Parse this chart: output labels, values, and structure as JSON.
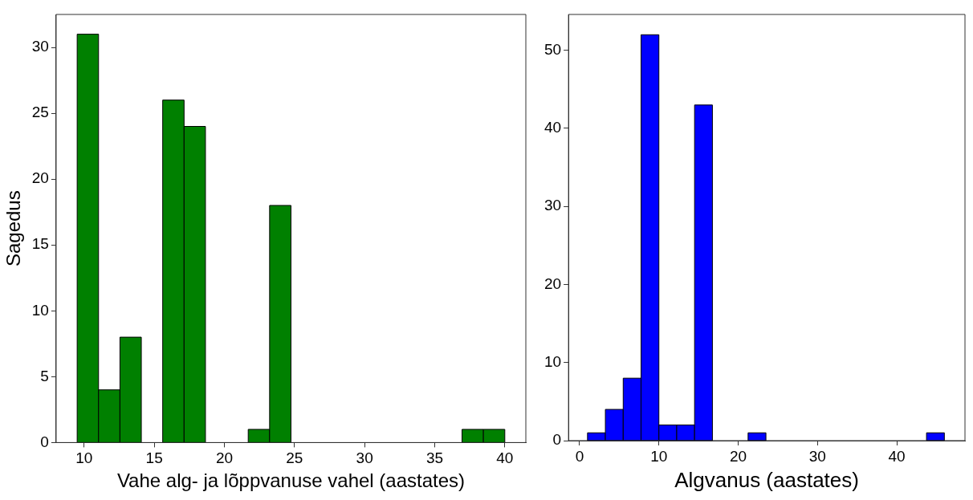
{
  "chart_data": [
    {
      "type": "histogram",
      "xlabel": "Vahe alg- ja lõppvanuse vahel (aastates)",
      "ylabel": "Sagedus",
      "color": "#008000",
      "bins": [
        9.5,
        11.025,
        12.55,
        14.075,
        15.6,
        17.125,
        18.65,
        20.175,
        21.7,
        23.225,
        24.75,
        26.275,
        27.8,
        29.325,
        30.85,
        32.375,
        33.9,
        35.425,
        36.95,
        38.475,
        40
      ],
      "values": [
        31,
        4,
        8,
        0,
        26,
        24,
        0,
        0,
        1,
        18,
        0,
        0,
        0,
        0,
        0,
        0,
        0,
        0,
        1,
        1
      ],
      "xlim": [
        8,
        41.5
      ],
      "xticks": [
        10,
        15,
        20,
        25,
        30,
        35,
        40
      ],
      "ylim": [
        0,
        32.5
      ],
      "yticks": [
        0,
        5,
        10,
        15,
        20,
        25,
        30
      ],
      "grid": false
    },
    {
      "type": "histogram",
      "xlabel": "Algvanus (aastates)",
      "color": "#0000ff",
      "bins": [
        1,
        3.25,
        5.5,
        7.75,
        10,
        12.25,
        14.5,
        16.75,
        19,
        21.25,
        23.5,
        25.75,
        28,
        30.25,
        32.5,
        34.75,
        37,
        39.25,
        41.5,
        43.75,
        46
      ],
      "values": [
        1,
        4,
        8,
        52,
        2,
        2,
        43,
        0,
        0,
        1,
        0,
        0,
        0,
        0,
        0,
        0,
        0,
        0,
        0,
        1
      ],
      "xlim": [
        -1.4,
        48.6
      ],
      "xticks": [
        0,
        10,
        20,
        30,
        40
      ],
      "ylim": [
        0,
        54.6
      ],
      "yticks": [
        0,
        10,
        20,
        30,
        40,
        50
      ],
      "grid": false
    }
  ]
}
